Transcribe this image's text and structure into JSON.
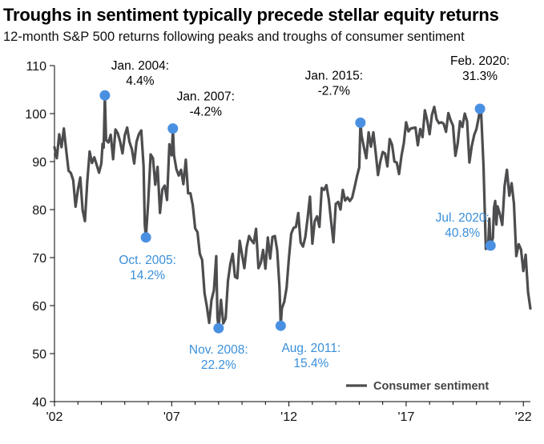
{
  "chart_data": {
    "type": "line",
    "title": "Troughs in sentiment typically precede stellar equity returns",
    "subtitle": "12-month S&P 500 returns following peaks and troughs of consumer sentiment",
    "xlabel": "",
    "ylabel": "",
    "xlim": [
      2002,
      2022.3
    ],
    "ylim": [
      40,
      110
    ],
    "x_tick_labels": [
      {
        "x": 2002,
        "label": "'02"
      },
      {
        "x": 2007,
        "label": "'07"
      },
      {
        "x": 2012,
        "label": "'12"
      },
      {
        "x": 2017,
        "label": "'17"
      },
      {
        "x": 2022,
        "label": "'22"
      }
    ],
    "y_ticks": [
      40,
      50,
      60,
      70,
      80,
      90,
      100,
      110
    ],
    "legend": {
      "position": "bottom-right",
      "label": "Consumer sentiment"
    },
    "colors": {
      "line": "#4d4d4f",
      "peak_text": "#000000",
      "trough_text": "#3a8fd9",
      "marker": "#4a90e2"
    },
    "series": [
      {
        "name": "Consumer sentiment",
        "points": [
          [
            2002.0,
            93.0
          ],
          [
            2002.1,
            90.7
          ],
          [
            2002.2,
            95.7
          ],
          [
            2002.3,
            93.0
          ],
          [
            2002.4,
            96.9
          ],
          [
            2002.5,
            92.4
          ],
          [
            2002.6,
            88.1
          ],
          [
            2002.7,
            87.6
          ],
          [
            2002.8,
            86.1
          ],
          [
            2002.9,
            80.6
          ],
          [
            2003.0,
            84.2
          ],
          [
            2003.1,
            86.7
          ],
          [
            2003.2,
            79.9
          ],
          [
            2003.3,
            77.6
          ],
          [
            2003.4,
            86.0
          ],
          [
            2003.5,
            92.1
          ],
          [
            2003.6,
            89.7
          ],
          [
            2003.7,
            90.9
          ],
          [
            2003.8,
            89.3
          ],
          [
            2003.9,
            87.7
          ],
          [
            2004.0,
            89.6
          ],
          [
            2004.05,
            93.7
          ],
          [
            2004.1,
            92.9
          ],
          [
            2004.15,
            103.8
          ],
          [
            2004.2,
            94.5
          ],
          [
            2004.3,
            94.0
          ],
          [
            2004.4,
            95.6
          ],
          [
            2004.5,
            90.5
          ],
          [
            2004.6,
            96.7
          ],
          [
            2004.7,
            95.9
          ],
          [
            2004.8,
            94.2
          ],
          [
            2004.9,
            91.7
          ],
          [
            2005.0,
            95.5
          ],
          [
            2005.1,
            97.1
          ],
          [
            2005.2,
            94.1
          ],
          [
            2005.3,
            92.6
          ],
          [
            2005.4,
            89.6
          ],
          [
            2005.5,
            94.1
          ],
          [
            2005.6,
            95.7
          ],
          [
            2005.7,
            96.5
          ],
          [
            2005.8,
            89.1
          ],
          [
            2005.85,
            76.9
          ],
          [
            2005.9,
            74.2
          ],
          [
            2006.0,
            81.6
          ],
          [
            2006.1,
            91.5
          ],
          [
            2006.2,
            90.7
          ],
          [
            2006.3,
            85.2
          ],
          [
            2006.4,
            88.9
          ],
          [
            2006.5,
            79.3
          ],
          [
            2006.6,
            84.2
          ],
          [
            2006.7,
            85.0
          ],
          [
            2006.8,
            82.0
          ],
          [
            2006.9,
            93.6
          ],
          [
            2007.0,
            91.3
          ],
          [
            2007.05,
            96.9
          ],
          [
            2007.1,
            91.3
          ],
          [
            2007.2,
            88.4
          ],
          [
            2007.3,
            87.1
          ],
          [
            2007.4,
            88.3
          ],
          [
            2007.5,
            85.3
          ],
          [
            2007.6,
            90.4
          ],
          [
            2007.7,
            83.4
          ],
          [
            2007.8,
            83.4
          ],
          [
            2007.9,
            80.9
          ],
          [
            2008.0,
            76.1
          ],
          [
            2008.1,
            75.3
          ],
          [
            2008.2,
            70.8
          ],
          [
            2008.3,
            69.5
          ],
          [
            2008.4,
            62.6
          ],
          [
            2008.5,
            59.8
          ],
          [
            2008.6,
            56.4
          ],
          [
            2008.7,
            61.2
          ],
          [
            2008.8,
            63.2
          ],
          [
            2008.9,
            70.3
          ],
          [
            2008.95,
            57.6
          ],
          [
            2009.0,
            55.3
          ],
          [
            2009.1,
            61.2
          ],
          [
            2009.2,
            56.3
          ],
          [
            2009.3,
            57.3
          ],
          [
            2009.4,
            65.1
          ],
          [
            2009.5,
            68.7
          ],
          [
            2009.6,
            70.8
          ],
          [
            2009.7,
            66.0
          ],
          [
            2009.8,
            65.7
          ],
          [
            2009.9,
            73.5
          ],
          [
            2010.0,
            70.6
          ],
          [
            2010.1,
            67.8
          ],
          [
            2010.2,
            72.2
          ],
          [
            2010.3,
            74.5
          ],
          [
            2010.4,
            73.6
          ],
          [
            2010.5,
            73.0
          ],
          [
            2010.6,
            76.0
          ],
          [
            2010.7,
            67.8
          ],
          [
            2010.8,
            68.9
          ],
          [
            2010.9,
            71.6
          ],
          [
            2011.0,
            67.7
          ],
          [
            2011.1,
            74.2
          ],
          [
            2011.2,
            69.8
          ],
          [
            2011.3,
            74.3
          ],
          [
            2011.4,
            74.5
          ],
          [
            2011.5,
            71.5
          ],
          [
            2011.6,
            63.7
          ],
          [
            2011.65,
            55.8
          ],
          [
            2011.7,
            59.4
          ],
          [
            2011.8,
            60.8
          ],
          [
            2011.9,
            63.7
          ],
          [
            2012.0,
            69.9
          ],
          [
            2012.1,
            75.0
          ],
          [
            2012.2,
            76.2
          ],
          [
            2012.3,
            76.4
          ],
          [
            2012.4,
            79.3
          ],
          [
            2012.5,
            73.2
          ],
          [
            2012.6,
            72.3
          ],
          [
            2012.7,
            74.3
          ],
          [
            2012.8,
            78.3
          ],
          [
            2012.9,
            82.7
          ],
          [
            2013.0,
            72.9
          ],
          [
            2013.1,
            77.6
          ],
          [
            2013.2,
            78.6
          ],
          [
            2013.3,
            76.4
          ],
          [
            2013.4,
            84.5
          ],
          [
            2013.5,
            84.1
          ],
          [
            2013.6,
            85.1
          ],
          [
            2013.7,
            82.1
          ],
          [
            2013.8,
            77.5
          ],
          [
            2013.9,
            73.2
          ],
          [
            2014.0,
            81.2
          ],
          [
            2014.1,
            81.6
          ],
          [
            2014.2,
            80.0
          ],
          [
            2014.3,
            84.1
          ],
          [
            2014.4,
            81.9
          ],
          [
            2014.5,
            82.5
          ],
          [
            2014.6,
            81.8
          ],
          [
            2014.7,
            82.5
          ],
          [
            2014.8,
            84.6
          ],
          [
            2014.9,
            86.9
          ],
          [
            2015.0,
            88.8
          ],
          [
            2015.05,
            98.1
          ],
          [
            2015.1,
            95.4
          ],
          [
            2015.2,
            93.0
          ],
          [
            2015.3,
            90.7
          ],
          [
            2015.4,
            96.1
          ],
          [
            2015.5,
            93.1
          ],
          [
            2015.6,
            96.1
          ],
          [
            2015.7,
            91.9
          ],
          [
            2015.8,
            87.2
          ],
          [
            2015.9,
            90.0
          ],
          [
            2016.0,
            92.0
          ],
          [
            2016.1,
            91.7
          ],
          [
            2016.2,
            89.0
          ],
          [
            2016.3,
            94.7
          ],
          [
            2016.4,
            93.5
          ],
          [
            2016.5,
            90.0
          ],
          [
            2016.6,
            89.8
          ],
          [
            2016.7,
            87.4
          ],
          [
            2016.8,
            91.2
          ],
          [
            2016.9,
            93.8
          ],
          [
            2017.0,
            98.2
          ],
          [
            2017.1,
            96.3
          ],
          [
            2017.2,
            96.9
          ],
          [
            2017.3,
            97.0
          ],
          [
            2017.4,
            97.1
          ],
          [
            2017.5,
            93.4
          ],
          [
            2017.6,
            96.8
          ],
          [
            2017.7,
            95.1
          ],
          [
            2017.8,
            100.7
          ],
          [
            2017.9,
            98.5
          ],
          [
            2018.0,
            95.7
          ],
          [
            2018.1,
            99.7
          ],
          [
            2018.2,
            101.4
          ],
          [
            2018.3,
            98.8
          ],
          [
            2018.4,
            98.0
          ],
          [
            2018.5,
            98.2
          ],
          [
            2018.6,
            97.9
          ],
          [
            2018.7,
            96.2
          ],
          [
            2018.8,
            100.1
          ],
          [
            2018.9,
            98.6
          ],
          [
            2019.0,
            97.5
          ],
          [
            2019.1,
            91.2
          ],
          [
            2019.2,
            93.8
          ],
          [
            2019.3,
            98.4
          ],
          [
            2019.4,
            97.2
          ],
          [
            2019.5,
            100.0
          ],
          [
            2019.6,
            98.4
          ],
          [
            2019.7,
            89.8
          ],
          [
            2019.8,
            93.2
          ],
          [
            2019.9,
            95.5
          ],
          [
            2020.0,
            96.8
          ],
          [
            2020.1,
            99.3
          ],
          [
            2020.15,
            101.0
          ],
          [
            2020.2,
            100.0
          ],
          [
            2020.3,
            89.1
          ],
          [
            2020.4,
            71.8
          ],
          [
            2020.5,
            72.3
          ],
          [
            2020.55,
            78.1
          ],
          [
            2020.6,
            72.5
          ],
          [
            2020.7,
            74.1
          ],
          [
            2020.75,
            80.4
          ],
          [
            2020.8,
            81.8
          ],
          [
            2020.85,
            76.9
          ],
          [
            2020.9,
            80.7
          ],
          [
            2021.0,
            79.0
          ],
          [
            2021.1,
            76.8
          ],
          [
            2021.2,
            84.9
          ],
          [
            2021.3,
            88.3
          ],
          [
            2021.4,
            82.9
          ],
          [
            2021.5,
            85.5
          ],
          [
            2021.6,
            81.2
          ],
          [
            2021.7,
            70.3
          ],
          [
            2021.8,
            72.8
          ],
          [
            2021.9,
            71.7
          ],
          [
            2022.0,
            67.2
          ],
          [
            2022.1,
            70.6
          ],
          [
            2022.2,
            62.8
          ],
          [
            2022.3,
            59.4
          ]
        ]
      }
    ],
    "annotations": [
      {
        "kind": "peak",
        "x": 2004.15,
        "y": 103.8,
        "date": "Jan. 2004:",
        "value": "4.4%"
      },
      {
        "kind": "peak",
        "x": 2007.05,
        "y": 96.9,
        "date": "Jan. 2007:",
        "value": "-4.2%"
      },
      {
        "kind": "peak",
        "x": 2015.05,
        "y": 98.1,
        "date": "Jan. 2015:",
        "value": "-2.7%"
      },
      {
        "kind": "peak",
        "x": 2020.15,
        "y": 101.0,
        "date": "Feb. 2020:",
        "value": "31.3%"
      },
      {
        "kind": "trough",
        "x": 2005.9,
        "y": 74.2,
        "date": "Oct. 2005:",
        "value": "14.2%"
      },
      {
        "kind": "trough",
        "x": 2009.0,
        "y": 55.3,
        "date": "Nov. 2008:",
        "value": "22.2%"
      },
      {
        "kind": "trough",
        "x": 2011.65,
        "y": 55.8,
        "date": "Aug. 2011:",
        "value": "15.4%"
      },
      {
        "kind": "trough",
        "x": 2020.6,
        "y": 72.5,
        "date": "Jul. 2020:",
        "value": "40.8%"
      }
    ]
  }
}
